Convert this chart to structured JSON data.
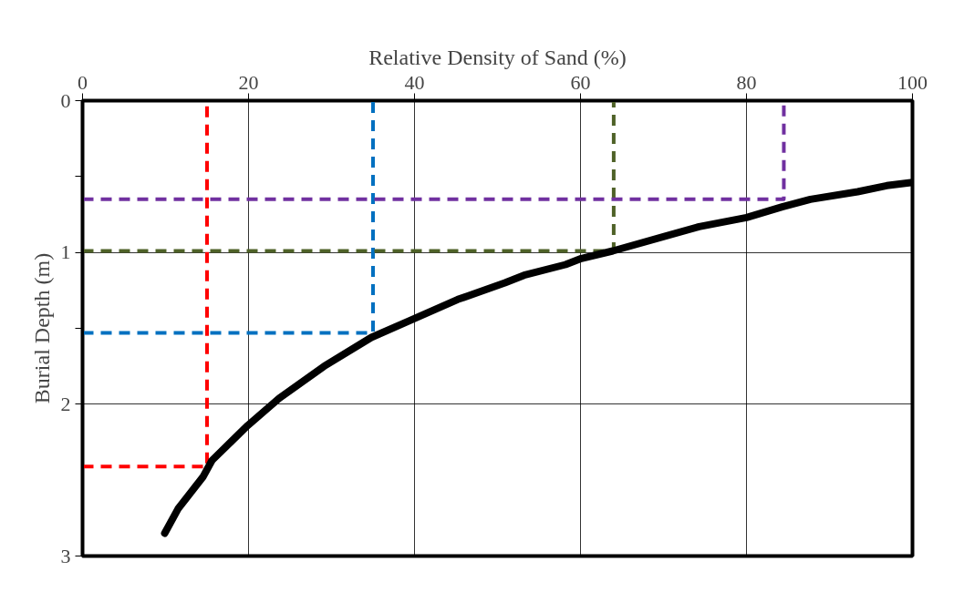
{
  "chart_data": {
    "type": "line",
    "xlabel": "Relative Density of Sand (%)",
    "ylabel": "Burial Depth (m)",
    "xlim": [
      0,
      100
    ],
    "xticks": [
      0,
      20,
      40,
      60,
      80,
      100
    ],
    "ylim": [
      3,
      0
    ],
    "yticks": [
      0,
      {
        "value": 0.5,
        "label": null
      },
      1,
      {
        "value": 1.5,
        "label": null
      },
      2,
      3
    ],
    "grid": true,
    "series": [
      {
        "color": "#000000",
        "line_style": "solid",
        "x": [
          9.9,
          11.5,
          14.5,
          15.6,
          19.9,
          23.7,
          29.1,
          34.8,
          39.4,
          45.2,
          50.9,
          53.2,
          58.2,
          60.1,
          63.9,
          74.3,
          80.0,
          84.3,
          87.7,
          93.4,
          96.9,
          99.8
        ],
        "values": [
          2.85,
          2.69,
          2.48,
          2.37,
          2.14,
          1.96,
          1.75,
          1.56,
          1.45,
          1.31,
          1.2,
          1.15,
          1.08,
          1.04,
          0.99,
          0.83,
          0.77,
          0.7,
          0.65,
          0.6,
          0.56,
          0.54
        ]
      },
      {
        "color": "#ff0000",
        "line_style": "dashed",
        "x": [
          0,
          15,
          15
        ],
        "values": [
          2.41,
          2.41,
          0
        ]
      },
      {
        "color": "#0070c0",
        "line_style": "dashed",
        "x": [
          0,
          35,
          35
        ],
        "values": [
          1.53,
          1.53,
          0
        ]
      },
      {
        "color": "#4f6228",
        "line_style": "dashed",
        "x": [
          0,
          64,
          64
        ],
        "values": [
          0.99,
          0.99,
          0
        ]
      },
      {
        "color": "#7030a0",
        "line_style": "dashed",
        "x": [
          0,
          84.5,
          84.5
        ],
        "values": [
          0.65,
          0.65,
          0
        ]
      }
    ]
  }
}
